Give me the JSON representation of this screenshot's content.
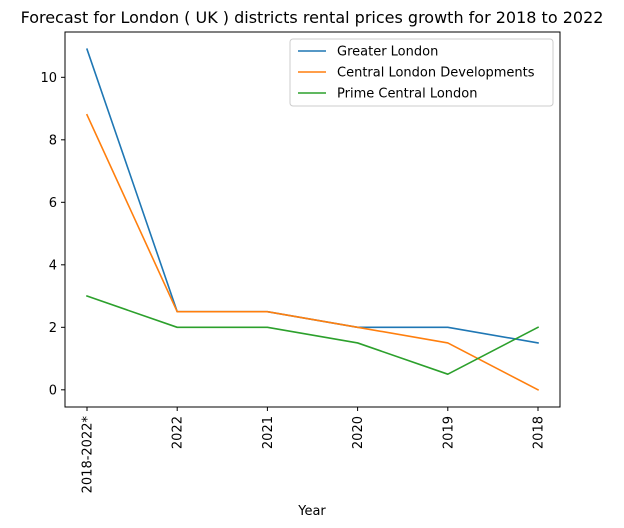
{
  "chart_data": {
    "type": "line",
    "title": "Forecast for London ( UK ) districts rental prices growth for 2018 to 2022",
    "xlabel": "Year",
    "ylabel": "",
    "categories": [
      "2018-2022*",
      "2022",
      "2021",
      "2020",
      "2019",
      "2018"
    ],
    "yticks": [
      "0",
      "2",
      "4",
      "6",
      "8",
      "10"
    ],
    "ylim": [
      -0.55,
      11.45
    ],
    "grid": false,
    "legend_position": "top-right",
    "series": [
      {
        "name": "Greater London",
        "color": "#1f77b4",
        "values": [
          10.9,
          2.5,
          2.5,
          2.0,
          2.0,
          1.5
        ]
      },
      {
        "name": "Central London Developments",
        "color": "#ff7f0e",
        "values": [
          8.8,
          2.5,
          2.5,
          2.0,
          1.5,
          0.0
        ]
      },
      {
        "name": "Prime Central London",
        "color": "#2ca02c",
        "values": [
          3.0,
          2.0,
          2.0,
          1.5,
          0.5,
          2.0
        ]
      }
    ]
  }
}
